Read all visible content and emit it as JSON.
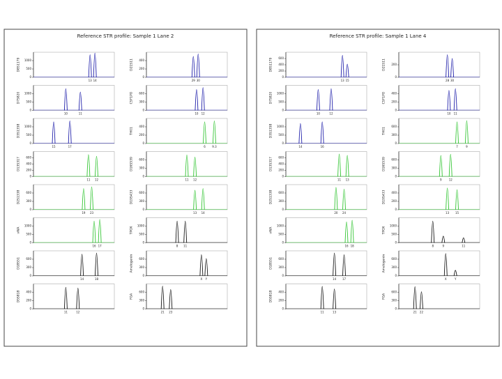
{
  "panels": [
    {
      "title": "Reference STR profile: Sample 1 Lane 2",
      "plots": [
        {
          "ylabel": "D8S1179",
          "color": "#1a1aa8",
          "ylim": [
            0,
            1500
          ],
          "yticks": [
            0,
            500,
            1000
          ],
          "peaks": [
            {
              "x": 70,
              "h": 1350,
              "label": "13"
            },
            {
              "x": 76,
              "h": 1450,
              "label": "14"
            }
          ]
        },
        {
          "ylabel": "D21S11",
          "color": "#1a1aa8",
          "ylim": [
            0,
            600
          ],
          "yticks": [
            0,
            200,
            400
          ],
          "peaks": [
            {
              "x": 58,
              "h": 500,
              "label": "29"
            },
            {
              "x": 64,
              "h": 560,
              "label": "30"
            }
          ]
        },
        {
          "ylabel": "D7S820",
          "color": "#1a1aa8",
          "ylim": [
            0,
            1500
          ],
          "yticks": [
            0,
            500,
            1000
          ],
          "peaks": [
            {
              "x": 40,
              "h": 1300,
              "label": "10"
            },
            {
              "x": 58,
              "h": 1100,
              "label": "11"
            }
          ]
        },
        {
          "ylabel": "CSF1PO",
          "color": "#1a1aa8",
          "ylim": [
            0,
            900
          ],
          "yticks": [
            0,
            300,
            600
          ],
          "peaks": [
            {
              "x": 62,
              "h": 750,
              "label": "10"
            },
            {
              "x": 70,
              "h": 820,
              "label": "12"
            }
          ]
        },
        {
          "ylabel": "D3S1358",
          "color": "#1a1aa8",
          "ylim": [
            0,
            1500
          ],
          "yticks": [
            0,
            500,
            1000
          ],
          "peaks": [
            {
              "x": 25,
              "h": 1300,
              "label": "15"
            },
            {
              "x": 45,
              "h": 1350,
              "label": "17"
            }
          ]
        },
        {
          "ylabel": "TH01",
          "color": "#2ec42e",
          "ylim": [
            0,
            600
          ],
          "yticks": [
            0,
            200,
            400
          ],
          "peaks": [
            {
              "x": 72,
              "h": 520,
              "label": "6"
            },
            {
              "x": 84,
              "h": 540,
              "label": "9.3"
            }
          ]
        },
        {
          "ylabel": "D13S317",
          "color": "#2ec42e",
          "ylim": [
            0,
            800
          ],
          "yticks": [
            0,
            200,
            400,
            600
          ],
          "peaks": [
            {
              "x": 68,
              "h": 700,
              "label": "11"
            },
            {
              "x": 78,
              "h": 650,
              "label": "12"
            }
          ]
        },
        {
          "ylabel": "D16S539",
          "color": "#2ec42e",
          "ylim": [
            0,
            900
          ],
          "yticks": [
            0,
            300,
            600
          ],
          "peaks": [
            {
              "x": 50,
              "h": 780,
              "label": "11"
            },
            {
              "x": 60,
              "h": 700,
              "label": "12"
            }
          ]
        },
        {
          "ylabel": "D2S1338",
          "color": "#2ec42e",
          "ylim": [
            0,
            900
          ],
          "yticks": [
            0,
            300,
            600
          ],
          "peaks": [
            {
              "x": 62,
              "h": 760,
              "label": "19"
            },
            {
              "x": 72,
              "h": 820,
              "label": "23"
            }
          ]
        },
        {
          "ylabel": "D19S433",
          "color": "#2ec42e",
          "ylim": [
            0,
            900
          ],
          "yticks": [
            0,
            300,
            600
          ],
          "peaks": [
            {
              "x": 60,
              "h": 700,
              "label": "13"
            },
            {
              "x": 70,
              "h": 760,
              "label": "14"
            }
          ]
        },
        {
          "ylabel": "vWA",
          "color": "#2ec42e",
          "ylim": [
            0,
            1500
          ],
          "yticks": [
            0,
            500,
            1000
          ],
          "peaks": [
            {
              "x": 75,
              "h": 1300,
              "label": "16"
            },
            {
              "x": 82,
              "h": 1400,
              "label": "17"
            }
          ]
        },
        {
          "ylabel": "TPOX",
          "color": "#111111",
          "ylim": [
            0,
            1500
          ],
          "yticks": [
            0,
            500,
            1000
          ],
          "peaks": [
            {
              "x": 38,
              "h": 1300,
              "label": "8"
            },
            {
              "x": 48,
              "h": 1300,
              "label": "11"
            }
          ]
        },
        {
          "ylabel": "D18S51",
          "color": "#111111",
          "ylim": [
            0,
            900
          ],
          "yticks": [
            0,
            300,
            600
          ],
          "peaks": [
            {
              "x": 60,
              "h": 780,
              "label": "14"
            },
            {
              "x": 78,
              "h": 820,
              "label": "18"
            }
          ]
        },
        {
          "ylabel": "Amelogenin",
          "color": "#111111",
          "ylim": [
            0,
            900
          ],
          "yticks": [
            0,
            300,
            600
          ],
          "peaks": [
            {
              "x": 68,
              "h": 760,
              "label": "X"
            },
            {
              "x": 74,
              "h": 620,
              "label": "Y"
            }
          ]
        },
        {
          "ylabel": "D5S818",
          "color": "#111111",
          "ylim": [
            0,
            600
          ],
          "yticks": [
            0,
            200,
            400
          ],
          "peaks": [
            {
              "x": 40,
              "h": 520,
              "label": "11"
            },
            {
              "x": 55,
              "h": 500,
              "label": "12"
            }
          ]
        },
        {
          "ylabel": "FGA",
          "color": "#111111",
          "ylim": [
            0,
            900
          ],
          "yticks": [
            0,
            300,
            600
          ],
          "peaks": [
            {
              "x": 20,
              "h": 820,
              "label": "21"
            },
            {
              "x": 30,
              "h": 700,
              "label": "23"
            }
          ]
        }
      ]
    },
    {
      "title": "Reference STR profile: Sample 1 Lane 4",
      "plots": [
        {
          "ylabel": "D8S1179",
          "color": "#1a1aa8",
          "ylim": [
            0,
            800
          ],
          "yticks": [
            0,
            200,
            400,
            600
          ],
          "peaks": [
            {
              "x": 70,
              "h": 700,
              "label": "13"
            },
            {
              "x": 76,
              "h": 420,
              "label": "15"
            }
          ]
        },
        {
          "ylabel": "D21S11",
          "color": "#1a1aa8",
          "ylim": [
            0,
            400
          ],
          "yticks": [
            0,
            200
          ],
          "peaks": [
            {
              "x": 60,
              "h": 360,
              "label": "28"
            },
            {
              "x": 66,
              "h": 300,
              "label": "30"
            }
          ]
        },
        {
          "ylabel": "D7S820",
          "color": "#1a1aa8",
          "ylim": [
            0,
            1500
          ],
          "yticks": [
            0,
            500,
            1000
          ],
          "peaks": [
            {
              "x": 40,
              "h": 1250,
              "label": "10"
            },
            {
              "x": 56,
              "h": 1300,
              "label": "12"
            }
          ]
        },
        {
          "ylabel": "CSF1PO",
          "color": "#1a1aa8",
          "ylim": [
            0,
            600
          ],
          "yticks": [
            0,
            200,
            400
          ],
          "peaks": [
            {
              "x": 62,
              "h": 480,
              "label": "10"
            },
            {
              "x": 70,
              "h": 520,
              "label": "11"
            }
          ]
        },
        {
          "ylabel": "D3S1358",
          "color": "#1a1aa8",
          "ylim": [
            0,
            1500
          ],
          "yticks": [
            0,
            500,
            1000
          ],
          "peaks": [
            {
              "x": 18,
              "h": 1200,
              "label": "14"
            },
            {
              "x": 45,
              "h": 1300,
              "label": "16"
            }
          ]
        },
        {
          "ylabel": "TH01",
          "color": "#2ec42e",
          "ylim": [
            0,
            900
          ],
          "yticks": [
            0,
            300,
            600
          ],
          "peaks": [
            {
              "x": 72,
              "h": 780,
              "label": "7"
            },
            {
              "x": 84,
              "h": 820,
              "label": "9"
            }
          ]
        },
        {
          "ylabel": "D13S317",
          "color": "#2ec42e",
          "ylim": [
            0,
            800
          ],
          "yticks": [
            0,
            200,
            400,
            600
          ],
          "peaks": [
            {
              "x": 66,
              "h": 720,
              "label": "11"
            },
            {
              "x": 76,
              "h": 680,
              "label": "13"
            }
          ]
        },
        {
          "ylabel": "D16S539",
          "color": "#2ec42e",
          "ylim": [
            0,
            900
          ],
          "yticks": [
            0,
            300,
            600
          ],
          "peaks": [
            {
              "x": 52,
              "h": 760,
              "label": "9"
            },
            {
              "x": 64,
              "h": 800,
              "label": "12"
            }
          ]
        },
        {
          "ylabel": "D2S1338",
          "color": "#2ec42e",
          "ylim": [
            0,
            900
          ],
          "yticks": [
            0,
            300,
            600
          ],
          "peaks": [
            {
              "x": 62,
              "h": 800,
              "label": "20"
            },
            {
              "x": 72,
              "h": 740,
              "label": "24"
            }
          ]
        },
        {
          "ylabel": "D19S433",
          "color": "#2ec42e",
          "ylim": [
            0,
            600
          ],
          "yticks": [
            0,
            200,
            400
          ],
          "peaks": [
            {
              "x": 60,
              "h": 520,
              "label": "13"
            },
            {
              "x": 72,
              "h": 480,
              "label": "15"
            }
          ]
        },
        {
          "ylabel": "vWA",
          "color": "#2ec42e",
          "ylim": [
            0,
            1500
          ],
          "yticks": [
            0,
            500,
            1000
          ],
          "peaks": [
            {
              "x": 75,
              "h": 1250,
              "label": "16"
            },
            {
              "x": 82,
              "h": 1350,
              "label": "18"
            }
          ]
        },
        {
          "ylabel": "TPOX",
          "color": "#111111",
          "ylim": [
            0,
            1500
          ],
          "yticks": [
            0,
            500,
            1000
          ],
          "peaks": [
            {
              "x": 42,
              "h": 1300,
              "label": "8"
            },
            {
              "x": 55,
              "h": 400,
              "label": "9"
            },
            {
              "x": 80,
              "h": 300,
              "label": "11"
            }
          ]
        },
        {
          "ylabel": "D18S51",
          "color": "#111111",
          "ylim": [
            0,
            900
          ],
          "yticks": [
            0,
            300,
            600
          ],
          "peaks": [
            {
              "x": 60,
              "h": 820,
              "label": "14"
            },
            {
              "x": 72,
              "h": 760,
              "label": "17"
            }
          ]
        },
        {
          "ylabel": "Amelogenin",
          "color": "#111111",
          "ylim": [
            0,
            900
          ],
          "yticks": [
            0,
            300,
            600
          ],
          "peaks": [
            {
              "x": 58,
              "h": 800,
              "label": "X"
            },
            {
              "x": 70,
              "h": 200,
              "label": "Y"
            }
          ]
        },
        {
          "ylabel": "D5S818",
          "color": "#111111",
          "ylim": [
            0,
            600
          ],
          "yticks": [
            0,
            200,
            400
          ],
          "peaks": [
            {
              "x": 45,
              "h": 540,
              "label": "11"
            },
            {
              "x": 60,
              "h": 480,
              "label": "13"
            }
          ]
        },
        {
          "ylabel": "FGA",
          "color": "#111111",
          "ylim": [
            0,
            900
          ],
          "yticks": [
            0,
            300,
            600
          ],
          "peaks": [
            {
              "x": 20,
              "h": 800,
              "label": "21"
            },
            {
              "x": 28,
              "h": 620,
              "label": "22"
            }
          ]
        }
      ]
    }
  ]
}
